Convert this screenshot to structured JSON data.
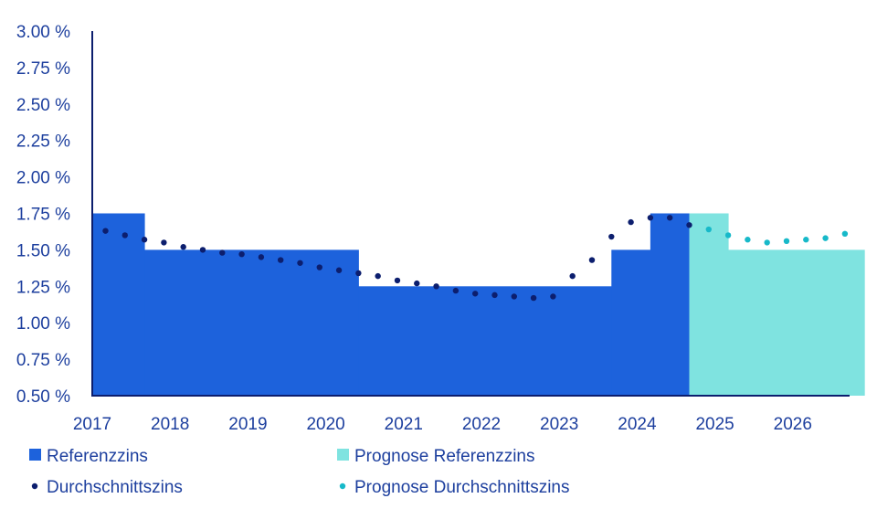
{
  "colors": {
    "referenzzins": "#1d62dc",
    "prognose_referenzzins": "#7fe3e0",
    "durchschnittszins": "#0c1e6e",
    "prognose_durchschnittszins": "#17b9c9",
    "axis": "#0c1e6e",
    "text": "#1d3f9e"
  },
  "chart_data": {
    "type": "area",
    "title": "",
    "xlabel": "",
    "ylabel": "",
    "xlim": [
      2017,
      2027
    ],
    "ylim": [
      0.5,
      3.0
    ],
    "x_ticks": [
      "2017",
      "2018",
      "2019",
      "2020",
      "2021",
      "2022",
      "2023",
      "2024",
      "2025",
      "2026"
    ],
    "y_ticks": [
      "3.00 %",
      "2.75 %",
      "2.50 %",
      "2.25 %",
      "2.00 %",
      "1.75 %",
      "1.50 %",
      "1.25 %",
      "1.00 %",
      "0.75 %",
      "0.50 %"
    ],
    "grid": false,
    "legend_position": "bottom",
    "series": [
      {
        "name": "Referenzzins",
        "kind": "step",
        "steps": [
          {
            "from": 2017.0,
            "to": 2017.67,
            "value": 1.75
          },
          {
            "from": 2017.67,
            "to": 2020.42,
            "value": 1.5
          },
          {
            "from": 2020.42,
            "to": 2023.67,
            "value": 1.25
          },
          {
            "from": 2023.67,
            "to": 2024.17,
            "value": 1.5
          },
          {
            "from": 2024.17,
            "to": 2024.67,
            "value": 1.75
          }
        ]
      },
      {
        "name": "Prognose Referenzzins",
        "kind": "step",
        "steps": [
          {
            "from": 2024.67,
            "to": 2025.17,
            "value": 1.75
          },
          {
            "from": 2025.17,
            "to": 2026.92,
            "value": 1.5
          }
        ]
      },
      {
        "name": "Durchschnittszins",
        "kind": "dots",
        "points": [
          [
            2017.17,
            1.63
          ],
          [
            2017.42,
            1.6
          ],
          [
            2017.67,
            1.57
          ],
          [
            2017.92,
            1.55
          ],
          [
            2018.17,
            1.52
          ],
          [
            2018.42,
            1.5
          ],
          [
            2018.67,
            1.48
          ],
          [
            2018.92,
            1.47
          ],
          [
            2019.17,
            1.45
          ],
          [
            2019.42,
            1.43
          ],
          [
            2019.67,
            1.41
          ],
          [
            2019.92,
            1.38
          ],
          [
            2020.17,
            1.36
          ],
          [
            2020.42,
            1.34
          ],
          [
            2020.67,
            1.32
          ],
          [
            2020.92,
            1.29
          ],
          [
            2021.17,
            1.27
          ],
          [
            2021.42,
            1.25
          ],
          [
            2021.67,
            1.22
          ],
          [
            2021.92,
            1.2
          ],
          [
            2022.17,
            1.19
          ],
          [
            2022.42,
            1.18
          ],
          [
            2022.67,
            1.17
          ],
          [
            2022.92,
            1.18
          ],
          [
            2023.17,
            1.32
          ],
          [
            2023.42,
            1.43
          ],
          [
            2023.67,
            1.59
          ],
          [
            2023.92,
            1.69
          ],
          [
            2024.17,
            1.72
          ],
          [
            2024.42,
            1.72
          ],
          [
            2024.67,
            1.67
          ]
        ]
      },
      {
        "name": "Prognose Durchschnittszins",
        "kind": "dots",
        "points": [
          [
            2024.92,
            1.64
          ],
          [
            2025.17,
            1.6
          ],
          [
            2025.42,
            1.57
          ],
          [
            2025.67,
            1.55
          ],
          [
            2025.92,
            1.56
          ],
          [
            2026.17,
            1.57
          ],
          [
            2026.42,
            1.58
          ],
          [
            2026.67,
            1.61
          ]
        ]
      }
    ]
  }
}
